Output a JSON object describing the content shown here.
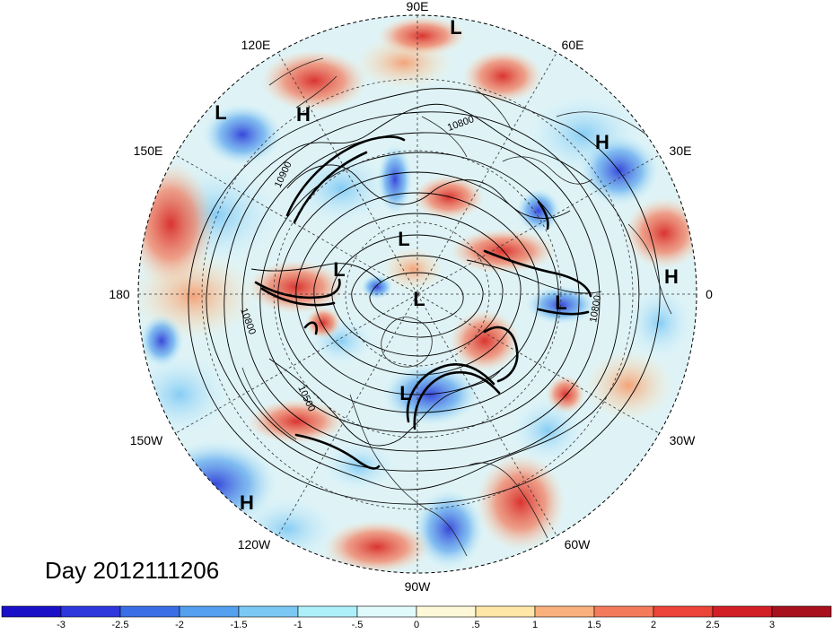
{
  "title": "Day 2012111206",
  "longitude_labels": [
    {
      "id": "lon-90e",
      "text": "90E"
    },
    {
      "id": "lon-60e",
      "text": "60E"
    },
    {
      "id": "lon-120e",
      "text": "120E"
    },
    {
      "id": "lon-150e",
      "text": "150E"
    },
    {
      "id": "lon-30e",
      "text": "30E"
    },
    {
      "id": "lon-180",
      "text": "180"
    },
    {
      "id": "lon-0",
      "text": "0"
    },
    {
      "id": "lon-150w",
      "text": "150W"
    },
    {
      "id": "lon-30w",
      "text": "30W"
    },
    {
      "id": "lon-120w",
      "text": "120W"
    },
    {
      "id": "lon-60w",
      "text": "60W"
    },
    {
      "id": "lon-90w",
      "text": "90W"
    }
  ],
  "pressure_markers": [
    {
      "id": "l1",
      "text": "L"
    },
    {
      "id": "l2",
      "text": "L"
    },
    {
      "id": "h1",
      "text": "H"
    },
    {
      "id": "h2",
      "text": "H"
    },
    {
      "id": "l3",
      "text": "L"
    },
    {
      "id": "l4",
      "text": "L"
    },
    {
      "id": "l5",
      "text": "L"
    },
    {
      "id": "h3",
      "text": "H"
    },
    {
      "id": "l6",
      "text": "L"
    },
    {
      "id": "l7",
      "text": "L"
    },
    {
      "id": "h4",
      "text": "H"
    }
  ],
  "contour_labels": [
    {
      "id": "c1",
      "text": "10800"
    },
    {
      "id": "c2",
      "text": "10900"
    },
    {
      "id": "c3",
      "text": "10800"
    },
    {
      "id": "c4",
      "text": "10800"
    },
    {
      "id": "c5",
      "text": "10500"
    }
  ],
  "colorbar": {
    "colors": [
      "#1a10c8",
      "#2e37dc",
      "#3a6ee6",
      "#54a0ee",
      "#7cc8f4",
      "#aef0fa",
      "#e0fafc",
      "#fdf8d8",
      "#fde6a6",
      "#f9b07c",
      "#f47a5c",
      "#ec4438",
      "#d21f26",
      "#a8101e"
    ],
    "tick_labels": [
      "-3",
      "-2.5",
      "-2",
      "-1.5",
      "-1",
      "-.5",
      "0",
      ".5",
      "1",
      "1.5",
      "2",
      "2.5",
      "3"
    ]
  }
}
